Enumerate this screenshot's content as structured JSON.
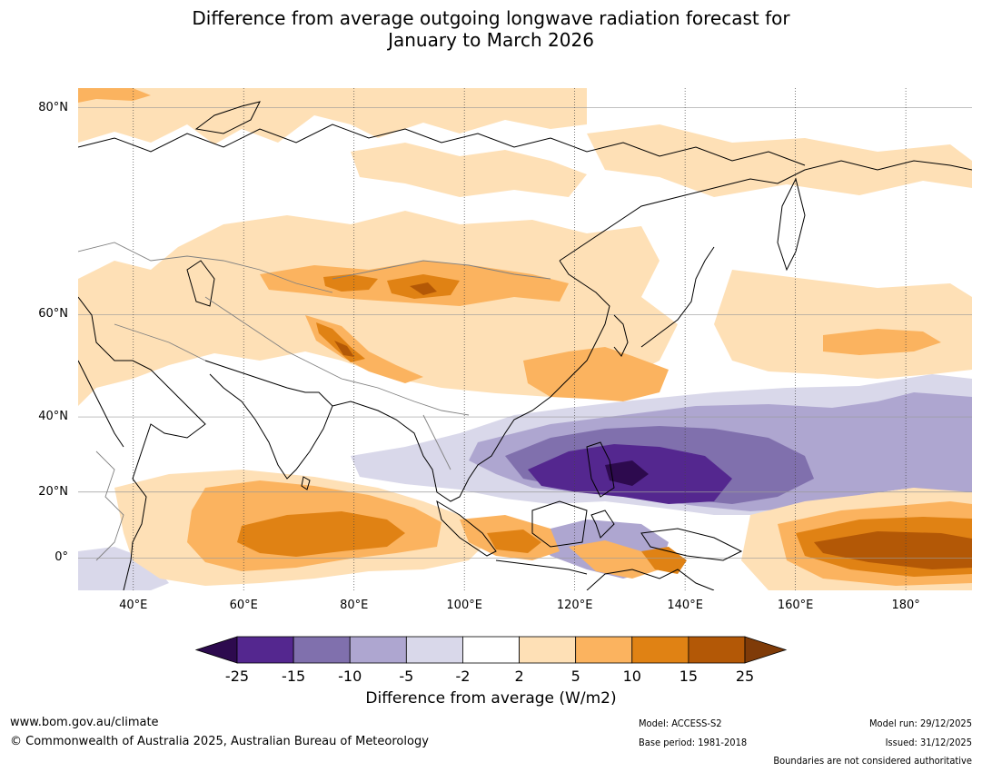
{
  "title": {
    "line1": "Difference from average outgoing longwave radiation forecast for",
    "line2": "January to March 2026"
  },
  "map": {
    "lat_labels": [
      "80°N",
      "60°N",
      "40°N",
      "20°N",
      "0°"
    ],
    "lon_labels": [
      "40°E",
      "60°E",
      "80°E",
      "100°E",
      "120°E",
      "140°E",
      "160°E",
      "180°"
    ],
    "lat_range": [
      -10,
      81
    ],
    "lon_range": [
      30,
      192
    ],
    "lat_ticks": [
      80,
      60,
      40,
      20,
      0
    ],
    "lon_ticks": [
      40,
      60,
      80,
      100,
      120,
      140,
      160,
      180
    ]
  },
  "colorbar": {
    "title": "Difference from average (W/m2)",
    "tick_labels": [
      "-25",
      "-15",
      "-10",
      "-5",
      "-2",
      "2",
      "5",
      "10",
      "15",
      "25"
    ],
    "bins": [
      {
        "range": "< -25",
        "color": "#2d0a4e"
      },
      {
        "range": "-25 to -15",
        "color": "#54278f"
      },
      {
        "range": "-15 to -10",
        "color": "#8070ad"
      },
      {
        "range": "-10 to -5",
        "color": "#aea6d0"
      },
      {
        "range": "-5 to -2",
        "color": "#d9d8ea"
      },
      {
        "range": "-2 to 2",
        "color": "#ffffff"
      },
      {
        "range": "2 to 5",
        "color": "#fee0b6"
      },
      {
        "range": "5 to 10",
        "color": "#fbb35f"
      },
      {
        "range": "10 to 15",
        "color": "#e08214"
      },
      {
        "range": "15 to 25",
        "color": "#b35806"
      },
      {
        "range": "> 25",
        "color": "#7f3b08"
      }
    ]
  },
  "footer": {
    "website": "www.bom.gov.au/climate",
    "copyright": "© Commonwealth of Australia 2025, Australian Bureau of Meteorology",
    "model": "Model: ACCESS-S2",
    "base_period": "Base period: 1981-2018",
    "model_run": "Model run: 29/12/2025",
    "issued": "Issued: 31/12/2025",
    "boundaries_note": "Boundaries are not considered authoritative"
  },
  "colors": {
    "gridline": "#9a9a9a",
    "coastline": "#000000",
    "country_border": "#808080"
  }
}
